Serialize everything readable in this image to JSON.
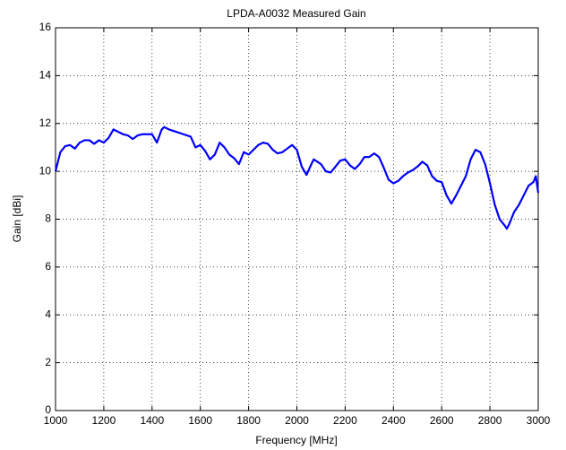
{
  "chart_data": {
    "type": "line",
    "title": "LPDA-A0032 Measured Gain",
    "x_label": "Frequency [MHz]",
    "y_label": "Gain [dBi]",
    "x": [
      1000,
      1020,
      1040,
      1060,
      1080,
      1100,
      1120,
      1140,
      1160,
      1180,
      1200,
      1220,
      1240,
      1260,
      1280,
      1300,
      1320,
      1340,
      1360,
      1380,
      1400,
      1420,
      1440,
      1450,
      1470,
      1500,
      1530,
      1560,
      1580,
      1600,
      1620,
      1640,
      1660,
      1680,
      1700,
      1720,
      1740,
      1760,
      1780,
      1800,
      1820,
      1840,
      1860,
      1880,
      1900,
      1920,
      1940,
      1960,
      1980,
      2000,
      2020,
      2040,
      2060,
      2070,
      2100,
      2120,
      2140,
      2160,
      2180,
      2200,
      2220,
      2240,
      2260,
      2280,
      2300,
      2320,
      2340,
      2360,
      2380,
      2400,
      2420,
      2440,
      2460,
      2480,
      2500,
      2520,
      2540,
      2560,
      2580,
      2600,
      2620,
      2640,
      2660,
      2680,
      2700,
      2720,
      2740,
      2760,
      2780,
      2800,
      2820,
      2840,
      2860,
      2870,
      2880,
      2900,
      2920,
      2940,
      2960,
      2980,
      2990,
      3000
    ],
    "series": [
      {
        "name": "Gain",
        "color": "#0000ff",
        "values": [
          10.0,
          10.8,
          11.05,
          11.1,
          10.95,
          11.2,
          11.3,
          11.3,
          11.15,
          11.3,
          11.2,
          11.4,
          11.75,
          11.65,
          11.55,
          11.5,
          11.35,
          11.5,
          11.55,
          11.55,
          11.55,
          11.2,
          11.75,
          11.85,
          11.75,
          11.65,
          11.55,
          11.45,
          11.0,
          11.1,
          10.85,
          10.5,
          10.7,
          11.2,
          11.0,
          10.7,
          10.55,
          10.3,
          10.8,
          10.7,
          10.9,
          11.1,
          11.2,
          11.15,
          10.9,
          10.75,
          10.8,
          10.95,
          11.1,
          10.9,
          10.2,
          9.85,
          10.3,
          10.5,
          10.3,
          10.0,
          9.95,
          10.2,
          10.45,
          10.5,
          10.25,
          10.1,
          10.3,
          10.6,
          10.6,
          10.75,
          10.6,
          10.15,
          9.65,
          9.5,
          9.6,
          9.8,
          9.95,
          10.05,
          10.2,
          10.4,
          10.25,
          9.8,
          9.6,
          9.55,
          9.0,
          8.65,
          9.0,
          9.4,
          9.8,
          10.5,
          10.9,
          10.8,
          10.3,
          9.5,
          8.6,
          8.0,
          7.75,
          7.6,
          7.8,
          8.3,
          8.6,
          9.0,
          9.4,
          9.55,
          9.8,
          9.1
        ]
      }
    ],
    "xlim": [
      1000,
      3000
    ],
    "xticks": [
      1000,
      1200,
      1400,
      1600,
      1800,
      2000,
      2200,
      2400,
      2600,
      2800,
      3000
    ],
    "ylim": [
      0,
      16
    ],
    "yticks": [
      0,
      2,
      4,
      6,
      8,
      10,
      12,
      14,
      16
    ],
    "grid": true
  }
}
